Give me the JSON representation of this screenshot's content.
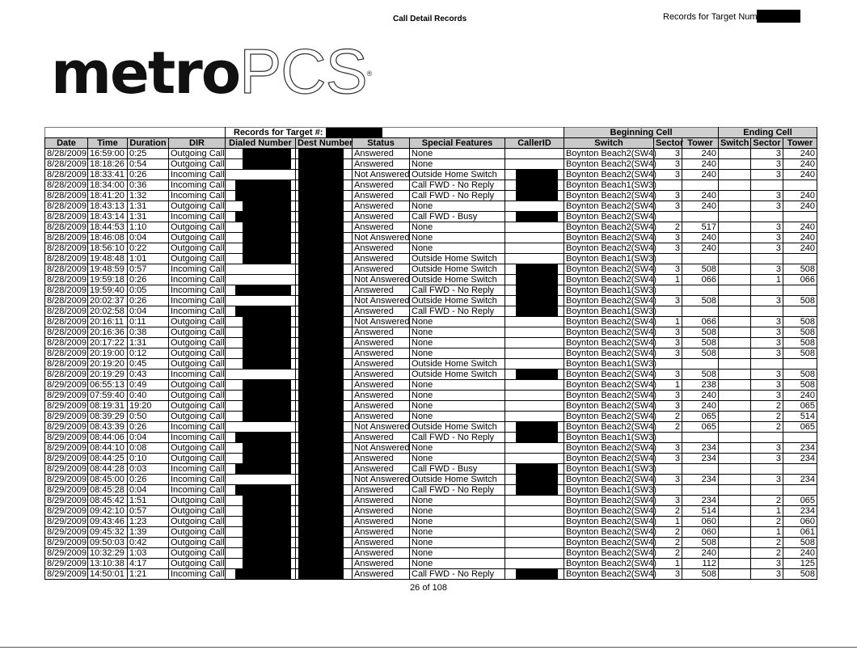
{
  "header": {
    "logo_text": "metroPCS",
    "logo_bold": "metro",
    "logo_light": "PCS",
    "title": "Call Detail Records",
    "target_label": "Records for Target Number:"
  },
  "table": {
    "records_for_target_label": "Records for Target #:",
    "beginning_cell_label": "Beginning Cell",
    "ending_cell_label": "Ending Cell",
    "columns": [
      "Date",
      "Time",
      "Duration",
      "DIR",
      "Dialed Number",
      "Dest Number",
      "Status",
      "Special Features",
      "CallerID",
      "Switch",
      "Sector",
      "Tower",
      "Switch",
      "Sector",
      "Tower"
    ],
    "rows": [
      {
        "cells": [
          "8/28/2009",
          "16:59:00",
          "0:25",
          "Outgoing Call",
          "",
          "",
          "Answered",
          "None",
          "",
          "Boynton Beach2(SW4)",
          "3",
          "240",
          "",
          "3",
          "240"
        ],
        "redact": [
          "dialed",
          "dest"
        ]
      },
      {
        "cells": [
          "8/28/2009",
          "18:18:26",
          "0:54",
          "Outgoing Call",
          "",
          "",
          "Answered",
          "None",
          "",
          "Boynton Beach2(SW4)",
          "3",
          "240",
          "",
          "3",
          "240"
        ],
        "redact": [
          "dialed",
          "dest"
        ]
      },
      {
        "cells": [
          "8/28/2009",
          "18:33:41",
          "0:26",
          "Incoming Call",
          "",
          "",
          "Not Answered",
          "Outside Home Switch",
          "",
          "Boynton Beach2(SW4)",
          "3",
          "240",
          "",
          "3",
          "240"
        ],
        "redact": [
          "dest",
          "callerid"
        ]
      },
      {
        "cells": [
          "8/28/2009",
          "18:34:00",
          "0:36",
          "Incoming Call",
          "",
          "",
          "Answered",
          "Call FWD - No Reply",
          "",
          "Boynton Beach1(SW3)",
          "",
          "",
          "",
          "",
          ""
        ],
        "redact": [
          "dialed",
          "dest",
          "callerid"
        ]
      },
      {
        "cells": [
          "8/28/2009",
          "18:41:20",
          "1:32",
          "Incoming Call",
          "",
          "",
          "Answered",
          "Call FWD - No Reply",
          "",
          "Boynton Beach2(SW4)",
          "3",
          "240",
          "",
          "3",
          "240"
        ],
        "redact": [
          "dialed",
          "dest",
          "callerid"
        ]
      },
      {
        "cells": [
          "8/28/2009",
          "18:43:13",
          "1:31",
          "Outgoing Call",
          "",
          "",
          "Answered",
          "None",
          "",
          "Boynton Beach2(SW4)",
          "3",
          "240",
          "",
          "3",
          "240"
        ],
        "redact": [
          "dialed",
          "dest"
        ]
      },
      {
        "cells": [
          "8/28/2009",
          "18:43:14",
          "1:31",
          "Incoming Call",
          "",
          "",
          "Answered",
          "Call FWD - Busy",
          "",
          "Boynton Beach2(SW4)",
          "",
          "",
          "",
          "",
          ""
        ],
        "redact": [
          "dialed",
          "dest",
          "callerid"
        ]
      },
      {
        "cells": [
          "8/28/2009",
          "18:44:53",
          "1:10",
          "Outgoing Call",
          "",
          "",
          "Answered",
          "None",
          "",
          "Boynton Beach2(SW4)",
          "2",
          "517",
          "",
          "3",
          "240"
        ],
        "redact": [
          "dialed",
          "dest"
        ]
      },
      {
        "cells": [
          "8/28/2009",
          "18:46:08",
          "0:04",
          "Outgoing Call",
          "",
          "",
          "Not Answered",
          "None",
          "",
          "Boynton Beach2(SW4)",
          "3",
          "240",
          "",
          "3",
          "240"
        ],
        "redact": [
          "dialed",
          "dest"
        ]
      },
      {
        "cells": [
          "8/28/2009",
          "18:56:10",
          "0:22",
          "Outgoing Call",
          "",
          "",
          "Answered",
          "None",
          "",
          "Boynton Beach2(SW4)",
          "3",
          "240",
          "",
          "3",
          "240"
        ],
        "redact": [
          "dialed",
          "dest"
        ]
      },
      {
        "cells": [
          "8/28/2009",
          "19:48:48",
          "1:01",
          "Outgoing Call",
          "",
          "",
          "Answered",
          "Outside Home Switch",
          "",
          "Boynton Beach1(SW3)",
          "",
          "",
          "",
          "",
          ""
        ],
        "redact": [
          "dialed",
          "dest"
        ]
      },
      {
        "cells": [
          "8/28/2009",
          "19:48:59",
          "0:57",
          "Incoming Call",
          "",
          "",
          "Answered",
          "Outside Home Switch",
          "",
          "Boynton Beach2(SW4)",
          "3",
          "508",
          "",
          "3",
          "508"
        ],
        "redact": [
          "dest",
          "callerid"
        ]
      },
      {
        "cells": [
          "8/28/2009",
          "19:59:18",
          "0:26",
          "Incoming Call",
          "",
          "",
          "Not Answered",
          "Outside Home Switch",
          "",
          "Boynton Beach2(SW4)",
          "1",
          "066",
          "",
          "1",
          "066"
        ],
        "redact": [
          "dest",
          "callerid"
        ]
      },
      {
        "cells": [
          "8/28/2009",
          "19:59:40",
          "0:05",
          "Incoming Call",
          "",
          "",
          "Answered",
          "Call FWD - No Reply",
          "",
          "Boynton Beach1(SW3)",
          "",
          "",
          "",
          "",
          ""
        ],
        "redact": [
          "dialed",
          "dest",
          "callerid"
        ]
      },
      {
        "cells": [
          "8/28/2009",
          "20:02:37",
          "0:26",
          "Incoming Call",
          "",
          "",
          "Not Answered",
          "Outside Home Switch",
          "",
          "Boynton Beach2(SW4)",
          "3",
          "508",
          "",
          "3",
          "508"
        ],
        "redact": [
          "dest",
          "callerid"
        ]
      },
      {
        "cells": [
          "8/28/2009",
          "20:02:58",
          "0:04",
          "Incoming Call",
          "",
          "",
          "Answered",
          "Call FWD - No Reply",
          "",
          "Boynton Beach1(SW3)",
          "",
          "",
          "",
          "",
          ""
        ],
        "redact": [
          "dialed",
          "dest",
          "callerid"
        ]
      },
      {
        "cells": [
          "8/28/2009",
          "20:16:11",
          "0:11",
          "Outgoing Call",
          "",
          "",
          "Not Answered",
          "None",
          "",
          "Boynton Beach2(SW4)",
          "1",
          "066",
          "",
          "3",
          "508"
        ],
        "redact": [
          "dialed",
          "dest"
        ]
      },
      {
        "cells": [
          "8/28/2009",
          "20:16:36",
          "0:38",
          "Outgoing Call",
          "",
          "",
          "Answered",
          "None",
          "",
          "Boynton Beach2(SW4)",
          "3",
          "508",
          "",
          "3",
          "508"
        ],
        "redact": [
          "dialed",
          "dest"
        ]
      },
      {
        "cells": [
          "8/28/2009",
          "20:17:22",
          "1:31",
          "Outgoing Call",
          "",
          "",
          "Answered",
          "None",
          "",
          "Boynton Beach2(SW4)",
          "3",
          "508",
          "",
          "3",
          "508"
        ],
        "redact": [
          "dialed",
          "dest"
        ]
      },
      {
        "cells": [
          "8/28/2009",
          "20:19:00",
          "0:12",
          "Outgoing Call",
          "",
          "",
          "Answered",
          "None",
          "",
          "Boynton Beach2(SW4)",
          "3",
          "508",
          "",
          "3",
          "508"
        ],
        "redact": [
          "dialed",
          "dest"
        ]
      },
      {
        "cells": [
          "8/28/2009",
          "20:19:20",
          "0:45",
          "Outgoing Call",
          "",
          "",
          "Answered",
          "Outside Home Switch",
          "",
          "Boynton Beach1(SW3)",
          "",
          "",
          "",
          "",
          ""
        ],
        "redact": [
          "dialed",
          "dest"
        ]
      },
      {
        "cells": [
          "8/28/2009",
          "20:19:29",
          "0:43",
          "Incoming Call",
          "",
          "",
          "Answered",
          "Outside Home Switch",
          "",
          "Boynton Beach2(SW4)",
          "3",
          "508",
          "",
          "3",
          "508"
        ],
        "redact": [
          "dest",
          "callerid"
        ]
      },
      {
        "cells": [
          "8/29/2009",
          "06:55:13",
          "0:49",
          "Outgoing Call",
          "",
          "",
          "Answered",
          "None",
          "",
          "Boynton Beach2(SW4)",
          "1",
          "238",
          "",
          "3",
          "508"
        ],
        "redact": [
          "dialed",
          "dest"
        ]
      },
      {
        "cells": [
          "8/29/2009",
          "07:59:40",
          "0:40",
          "Outgoing Call",
          "",
          "",
          "Answered",
          "None",
          "",
          "Boynton Beach2(SW4)",
          "3",
          "240",
          "",
          "3",
          "240"
        ],
        "redact": [
          "dialed",
          "dest"
        ]
      },
      {
        "cells": [
          "8/29/2009",
          "08:19:31",
          "19:20",
          "Outgoing Call",
          "",
          "",
          "Answered",
          "None",
          "",
          "Boynton Beach2(SW4)",
          "3",
          "240",
          "",
          "2",
          "065"
        ],
        "redact": [
          "dialed",
          "dest"
        ]
      },
      {
        "cells": [
          "8/29/2009",
          "08:39:29",
          "0:50",
          "Outgoing Call",
          "",
          "",
          "Answered",
          "None",
          "",
          "Boynton Beach2(SW4)",
          "2",
          "065",
          "",
          "2",
          "514"
        ],
        "redact": [
          "dialed",
          "dest"
        ]
      },
      {
        "cells": [
          "8/29/2009",
          "08:43:39",
          "0:26",
          "Incoming Call",
          "",
          "",
          "Not Answered",
          "Outside Home Switch",
          "",
          "Boynton Beach2(SW4)",
          "2",
          "065",
          "",
          "2",
          "065"
        ],
        "redact": [
          "dest",
          "callerid"
        ]
      },
      {
        "cells": [
          "8/29/2009",
          "08:44:06",
          "0:04",
          "Incoming Call",
          "",
          "",
          "Answered",
          "Call FWD - No Reply",
          "",
          "Boynton Beach1(SW3)",
          "",
          "",
          "",
          "",
          ""
        ],
        "redact": [
          "dialed",
          "dest",
          "callerid"
        ]
      },
      {
        "cells": [
          "8/29/2009",
          "08:44:10",
          "0:08",
          "Outgoing Call",
          "",
          "",
          "Not Answered",
          "None",
          "",
          "Boynton Beach2(SW4)",
          "3",
          "234",
          "",
          "3",
          "234"
        ],
        "redact": [
          "dialed",
          "dest"
        ]
      },
      {
        "cells": [
          "8/29/2009",
          "08:44:25",
          "0:10",
          "Outgoing Call",
          "",
          "",
          "Answered",
          "None",
          "",
          "Boynton Beach2(SW4)",
          "3",
          "234",
          "",
          "3",
          "234"
        ],
        "redact": [
          "dialed",
          "dest"
        ]
      },
      {
        "cells": [
          "8/29/2009",
          "08:44:28",
          "0:03",
          "Incoming Call",
          "",
          "",
          "Answered",
          "Call FWD - Busy",
          "",
          "Boynton Beach1(SW3)",
          "",
          "",
          "",
          "",
          ""
        ],
        "redact": [
          "dialed",
          "dest",
          "callerid"
        ]
      },
      {
        "cells": [
          "8/29/2009",
          "08:45:00",
          "0:26",
          "Incoming Call",
          "",
          "",
          "Not Answered",
          "Outside Home Switch",
          "",
          "Boynton Beach2(SW4)",
          "3",
          "234",
          "",
          "3",
          "234"
        ],
        "redact": [
          "dest",
          "callerid"
        ]
      },
      {
        "cells": [
          "8/29/2009",
          "08:45:28",
          "0:04",
          "Incoming Call",
          "",
          "",
          "Answered",
          "Call FWD - No Reply",
          "",
          "Boynton Beach1(SW3)",
          "",
          "",
          "",
          "",
          ""
        ],
        "redact": [
          "dialed",
          "dest",
          "callerid"
        ]
      },
      {
        "cells": [
          "8/29/2009",
          "08:45:42",
          "1:51",
          "Outgoing Call",
          "",
          "",
          "Answered",
          "None",
          "",
          "Boynton Beach2(SW4)",
          "3",
          "234",
          "",
          "2",
          "065"
        ],
        "redact": [
          "dialed",
          "dest"
        ]
      },
      {
        "cells": [
          "8/29/2009",
          "09:42:10",
          "0:57",
          "Outgoing Call",
          "",
          "",
          "Answered",
          "None",
          "",
          "Boynton Beach2(SW4)",
          "2",
          "514",
          "",
          "1",
          "234"
        ],
        "redact": [
          "dialed",
          "dest"
        ]
      },
      {
        "cells": [
          "8/29/2009",
          "09:43:46",
          "1:23",
          "Outgoing Call",
          "",
          "",
          "Answered",
          "None",
          "",
          "Boynton Beach2(SW4)",
          "1",
          "060",
          "",
          "2",
          "060"
        ],
        "redact": [
          "dialed",
          "dest"
        ]
      },
      {
        "cells": [
          "8/29/2009",
          "09:45:32",
          "1:39",
          "Outgoing Call",
          "",
          "",
          "Answered",
          "None",
          "",
          "Boynton Beach2(SW4)",
          "2",
          "060",
          "",
          "1",
          "061"
        ],
        "redact": [
          "dialed",
          "dest"
        ]
      },
      {
        "cells": [
          "8/29/2009",
          "09:50:03",
          "0:42",
          "Outgoing Call",
          "",
          "",
          "Answered",
          "None",
          "",
          "Boynton Beach2(SW4)",
          "2",
          "508",
          "",
          "2",
          "508"
        ],
        "redact": [
          "dialed",
          "dest"
        ]
      },
      {
        "cells": [
          "8/29/2009",
          "10:32:29",
          "1:03",
          "Outgoing Call",
          "",
          "",
          "Answered",
          "None",
          "",
          "Boynton Beach2(SW4)",
          "2",
          "240",
          "",
          "2",
          "240"
        ],
        "redact": [
          "dialed",
          "dest"
        ]
      },
      {
        "cells": [
          "8/29/2009",
          "13:10:38",
          "4:17",
          "Outgoing Call",
          "",
          "",
          "Answered",
          "None",
          "",
          "Boynton Beach2(SW4)",
          "1",
          "112",
          "",
          "3",
          "125"
        ],
        "redact": [
          "dialed",
          "dest"
        ]
      },
      {
        "cells": [
          "8/29/2009",
          "14:50:01",
          "1:21",
          "Incoming Call",
          "",
          "",
          "Answered",
          "Call FWD - No Reply",
          "",
          "Boynton Beach2(SW4)",
          "3",
          "508",
          "",
          "3",
          "508"
        ],
        "redact": [
          "dialed",
          "dest",
          "callerid"
        ]
      }
    ]
  },
  "footer": {
    "page": "26 of 108"
  }
}
